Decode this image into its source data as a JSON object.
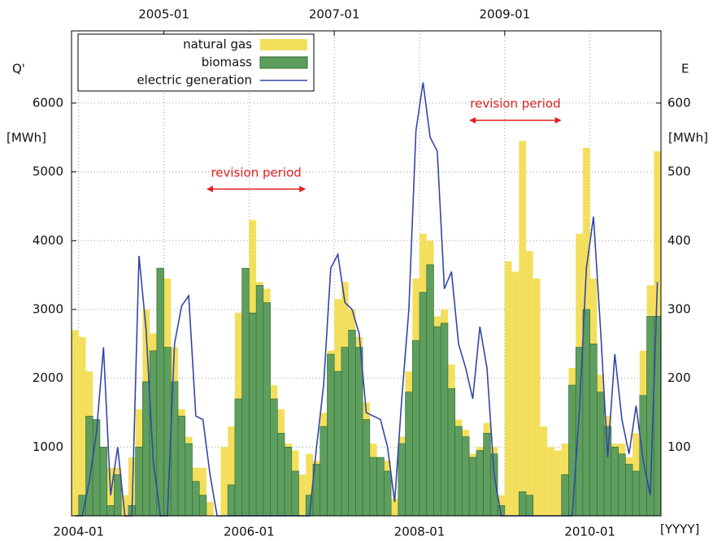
{
  "chart_data": {
    "type": "bar",
    "y_label": "Q'",
    "y_unit": "[MWh]",
    "y2_label": "E",
    "y2_unit": "[MWh]",
    "x_label": "[YYYY]",
    "x": [
      "2003-12",
      "2004-01",
      "2004-02",
      "2004-03",
      "2004-04",
      "2004-05",
      "2004-06",
      "2004-07",
      "2004-08",
      "2004-09",
      "2004-10",
      "2004-11",
      "2004-12",
      "2005-01",
      "2005-02",
      "2005-03",
      "2005-04",
      "2005-05",
      "2005-06",
      "2005-07",
      "2005-08",
      "2005-09",
      "2005-10",
      "2005-11",
      "2005-12",
      "2006-01",
      "2006-02",
      "2006-03",
      "2006-04",
      "2006-05",
      "2006-06",
      "2006-07",
      "2006-08",
      "2006-09",
      "2006-10",
      "2006-11",
      "2006-12",
      "2007-01",
      "2007-02",
      "2007-03",
      "2007-04",
      "2007-05",
      "2007-06",
      "2007-07",
      "2007-08",
      "2007-09",
      "2007-10",
      "2007-11",
      "2007-12",
      "2008-01",
      "2008-02",
      "2008-03",
      "2008-04",
      "2008-05",
      "2008-06",
      "2008-07",
      "2008-08",
      "2008-09",
      "2008-10",
      "2008-11",
      "2008-12",
      "2009-01",
      "2009-02",
      "2009-03",
      "2009-04",
      "2009-05",
      "2009-06",
      "2009-07",
      "2009-08",
      "2009-09",
      "2009-10",
      "2009-11",
      "2009-12",
      "2010-01",
      "2010-02",
      "2010-03",
      "2010-04",
      "2010-05",
      "2010-06",
      "2010-07",
      "2010-08",
      "2010-09",
      "2010-10"
    ],
    "series": [
      {
        "name": "natural gas",
        "type": "bar",
        "color": "#f3df5c",
        "values": [
          2700,
          2600,
          2100,
          1400,
          1000,
          700,
          700,
          300,
          850,
          1550,
          3000,
          2650,
          3600,
          3450,
          2450,
          1550,
          1150,
          700,
          700,
          200,
          0,
          1000,
          1300,
          2950,
          3600,
          4300,
          3400,
          3300,
          1900,
          1550,
          1050,
          950,
          600,
          900,
          800,
          1500,
          2400,
          3150,
          3400,
          3000,
          2600,
          1650,
          1050,
          850,
          800,
          250,
          1150,
          2100,
          3450,
          4100,
          4000,
          2900,
          3000,
          2200,
          1400,
          1250,
          900,
          1000,
          1350,
          1000,
          300,
          3700,
          3550,
          5450,
          3850,
          3450,
          1300,
          1000,
          950,
          1050,
          2150,
          4100,
          5350,
          3450,
          2050,
          1450,
          1050,
          1050,
          850,
          1200,
          2400,
          3350,
          5300
        ]
      },
      {
        "name": "biomass",
        "type": "bar",
        "color": "#5e9e5e",
        "values": [
          0,
          300,
          1450,
          1400,
          1000,
          150,
          600,
          0,
          150,
          1000,
          1950,
          2400,
          3600,
          2450,
          1950,
          1450,
          1050,
          500,
          300,
          0,
          0,
          0,
          450,
          1700,
          3600,
          2950,
          3350,
          3100,
          1700,
          1200,
          1000,
          650,
          0,
          300,
          750,
          1300,
          2350,
          2100,
          2450,
          2700,
          2450,
          1400,
          850,
          850,
          650,
          0,
          1050,
          1800,
          2550,
          3250,
          3650,
          2750,
          2800,
          1850,
          1300,
          1150,
          850,
          950,
          1200,
          900,
          150,
          0,
          0,
          350,
          300,
          0,
          0,
          0,
          0,
          600,
          1900,
          2450,
          3000,
          2500,
          1800,
          1300,
          1000,
          900,
          750,
          650,
          1750,
          2900,
          2900
        ]
      },
      {
        "name": "electric generation",
        "type": "line",
        "axis": "y2",
        "color": "#3446a8",
        "values": [
          0,
          0,
          50,
          120,
          245,
          30,
          100,
          0,
          0,
          378,
          270,
          80,
          0,
          0,
          250,
          305,
          320,
          145,
          140,
          60,
          0,
          0,
          0,
          0,
          0,
          0,
          0,
          0,
          0,
          0,
          0,
          0,
          0,
          0,
          100,
          190,
          360,
          380,
          310,
          300,
          265,
          150,
          145,
          140,
          100,
          20,
          170,
          300,
          560,
          630,
          550,
          530,
          330,
          355,
          250,
          215,
          170,
          275,
          215,
          60,
          0,
          0,
          0,
          0,
          0,
          0,
          0,
          0,
          0,
          0,
          0,
          150,
          360,
          435,
          270,
          85,
          235,
          140,
          90,
          160,
          80,
          30,
          340
        ]
      }
    ],
    "xlim": [
      "2003-12",
      "2010-11"
    ],
    "xticks": [
      "2004-01",
      "2006-01",
      "2008-01",
      "2010-01"
    ],
    "x2ticks": [
      "2005-01",
      "2007-01",
      "2009-01"
    ],
    "ylim": [
      0,
      7050
    ],
    "yticks": [
      1000,
      2000,
      3000,
      4000,
      5000,
      6000
    ],
    "y2lim": [
      0,
      705
    ],
    "y2ticks": [
      100,
      200,
      300,
      400,
      500,
      600
    ],
    "grid": true,
    "legend": "top-left",
    "annotations": [
      {
        "text": "revision period",
        "x": [
          "2005-07",
          "2006-09"
        ],
        "y": 4750,
        "color": "#e02020"
      },
      {
        "text": "revision period",
        "x": [
          "2008-08",
          "2009-09"
        ],
        "y": 5750,
        "color": "#e02020"
      }
    ]
  }
}
